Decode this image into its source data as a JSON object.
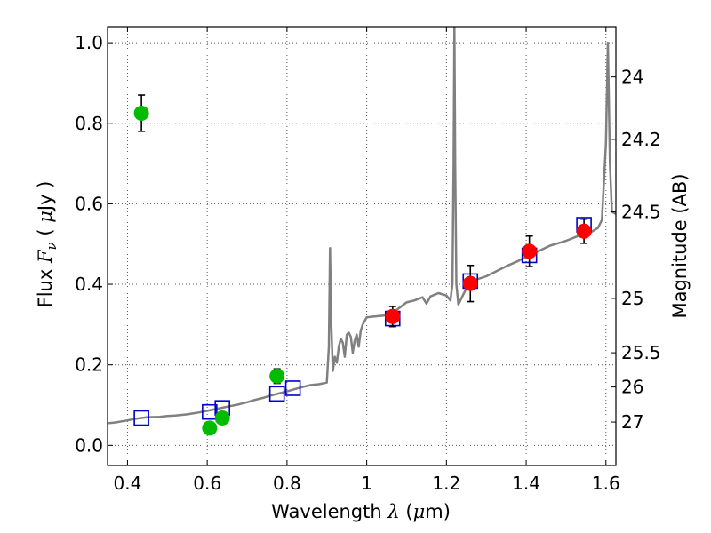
{
  "chart_data": {
    "type": "scatter",
    "title": "",
    "xlabel": {
      "prefix": "Wavelength",
      "symbol": "λ",
      "unit_open": "(",
      "unit_mu": "μ",
      "unit_rest": "m)"
    },
    "ylabel": {
      "prefix": "Flux",
      "symbol": "F",
      "subscript": "ν",
      "unit_open": "(",
      "unit_mu": "μ",
      "unit_rest": "Jy )"
    },
    "y2label": "Magnitude (AB)",
    "xlim": [
      0.35,
      1.625
    ],
    "ylim": [
      -0.05,
      1.04
    ],
    "x_ticks": [
      "0.4",
      "0.6",
      "0.8",
      "1",
      "1.2",
      "1.4",
      "1.6"
    ],
    "x_tick_values": [
      0.4,
      0.6,
      0.8,
      1.0,
      1.2,
      1.4,
      1.6
    ],
    "y_ticks": [
      "0.0",
      "0.2",
      "0.4",
      "0.6",
      "0.8",
      "1.0"
    ],
    "y_tick_values": [
      0.0,
      0.2,
      0.4,
      0.6,
      0.8,
      1.0
    ],
    "y2_ticks": [
      {
        "label": "24",
        "flux": 0.915
      },
      {
        "label": "24.2",
        "flux": 0.76
      },
      {
        "label": "24.5",
        "flux": 0.58
      },
      {
        "label": "25",
        "flux": 0.365
      },
      {
        "label": "25.5",
        "flux": 0.23
      },
      {
        "label": "26",
        "flux": 0.145
      },
      {
        "label": "27",
        "flux": 0.058
      }
    ],
    "grid": true,
    "legend": "none",
    "colors": {
      "green": "#00bb00",
      "red": "#ff0000",
      "blue_square": "#0000cc",
      "sed": "#808080"
    },
    "series": [
      {
        "marker": "circle",
        "color": "#00bb00",
        "points": [
          {
            "x": 0.435,
            "y": 0.825,
            "err": 0.045
          },
          {
            "x": 0.606,
            "y": 0.043,
            "err": 0.012
          },
          {
            "x": 0.638,
            "y": 0.068,
            "err": 0.014
          },
          {
            "x": 0.775,
            "y": 0.172,
            "err": 0.018
          }
        ]
      },
      {
        "marker": "circle",
        "color": "#ff0000",
        "points": [
          {
            "x": 1.065,
            "y": 0.32,
            "err": 0.025
          },
          {
            "x": 1.26,
            "y": 0.402,
            "err": 0.045
          },
          {
            "x": 1.408,
            "y": 0.482,
            "err": 0.038
          },
          {
            "x": 1.545,
            "y": 0.532,
            "err": 0.03
          }
        ]
      },
      {
        "marker": "square",
        "color": "#0000cc",
        "points": [
          {
            "x": 0.435,
            "y": 0.068
          },
          {
            "x": 0.606,
            "y": 0.083
          },
          {
            "x": 0.638,
            "y": 0.093
          },
          {
            "x": 0.775,
            "y": 0.128
          },
          {
            "x": 0.815,
            "y": 0.142
          },
          {
            "x": 1.065,
            "y": 0.315
          },
          {
            "x": 1.26,
            "y": 0.408
          },
          {
            "x": 1.408,
            "y": 0.472
          },
          {
            "x": 1.545,
            "y": 0.548
          }
        ]
      },
      {
        "marker": "line",
        "color": "#808080",
        "points": [
          [
            0.35,
            0.055
          ],
          [
            0.37,
            0.057
          ],
          [
            0.4,
            0.062
          ],
          [
            0.42,
            0.066
          ],
          [
            0.45,
            0.07
          ],
          [
            0.48,
            0.071
          ],
          [
            0.5,
            0.073
          ],
          [
            0.52,
            0.074
          ],
          [
            0.55,
            0.077
          ],
          [
            0.58,
            0.082
          ],
          [
            0.6,
            0.086
          ],
          [
            0.62,
            0.09
          ],
          [
            0.65,
            0.096
          ],
          [
            0.68,
            0.102
          ],
          [
            0.7,
            0.107
          ],
          [
            0.72,
            0.113
          ],
          [
            0.74,
            0.118
          ],
          [
            0.76,
            0.124
          ],
          [
            0.78,
            0.129
          ],
          [
            0.8,
            0.134
          ],
          [
            0.82,
            0.14
          ],
          [
            0.84,
            0.145
          ],
          [
            0.86,
            0.15
          ],
          [
            0.88,
            0.152
          ],
          [
            0.9,
            0.156
          ],
          [
            0.905,
            0.245
          ],
          [
            0.908,
            0.49
          ],
          [
            0.911,
            0.3
          ],
          [
            0.915,
            0.185
          ],
          [
            0.92,
            0.22
          ],
          [
            0.925,
            0.205
          ],
          [
            0.93,
            0.245
          ],
          [
            0.935,
            0.265
          ],
          [
            0.94,
            0.255
          ],
          [
            0.945,
            0.22
          ],
          [
            0.95,
            0.275
          ],
          [
            0.955,
            0.28
          ],
          [
            0.96,
            0.27
          ],
          [
            0.965,
            0.23
          ],
          [
            0.97,
            0.26
          ],
          [
            0.975,
            0.275
          ],
          [
            0.98,
            0.245
          ],
          [
            0.985,
            0.285
          ],
          [
            0.99,
            0.3
          ],
          [
            1.0,
            0.318
          ],
          [
            1.02,
            0.32
          ],
          [
            1.04,
            0.322
          ],
          [
            1.06,
            0.325
          ],
          [
            1.08,
            0.34
          ],
          [
            1.1,
            0.355
          ],
          [
            1.12,
            0.36
          ],
          [
            1.14,
            0.368
          ],
          [
            1.15,
            0.352
          ],
          [
            1.16,
            0.37
          ],
          [
            1.18,
            0.378
          ],
          [
            1.2,
            0.372
          ],
          [
            1.21,
            0.36
          ],
          [
            1.215,
            0.4
          ],
          [
            1.218,
            0.7
          ],
          [
            1.22,
            1.04
          ],
          [
            1.222,
            0.7
          ],
          [
            1.225,
            0.4
          ],
          [
            1.23,
            0.35
          ],
          [
            1.25,
            0.39
          ],
          [
            1.27,
            0.41
          ],
          [
            1.3,
            0.42
          ],
          [
            1.32,
            0.43
          ],
          [
            1.35,
            0.445
          ],
          [
            1.38,
            0.458
          ],
          [
            1.4,
            0.468
          ],
          [
            1.43,
            0.482
          ],
          [
            1.46,
            0.496
          ],
          [
            1.5,
            0.508
          ],
          [
            1.53,
            0.52
          ],
          [
            1.56,
            0.528
          ],
          [
            1.58,
            0.54
          ],
          [
            1.59,
            0.56
          ],
          [
            1.6,
            0.75
          ],
          [
            1.605,
            1.0
          ],
          [
            1.61,
            0.7
          ],
          [
            1.615,
            0.58
          ],
          [
            1.625,
            0.575
          ]
        ]
      }
    ]
  }
}
